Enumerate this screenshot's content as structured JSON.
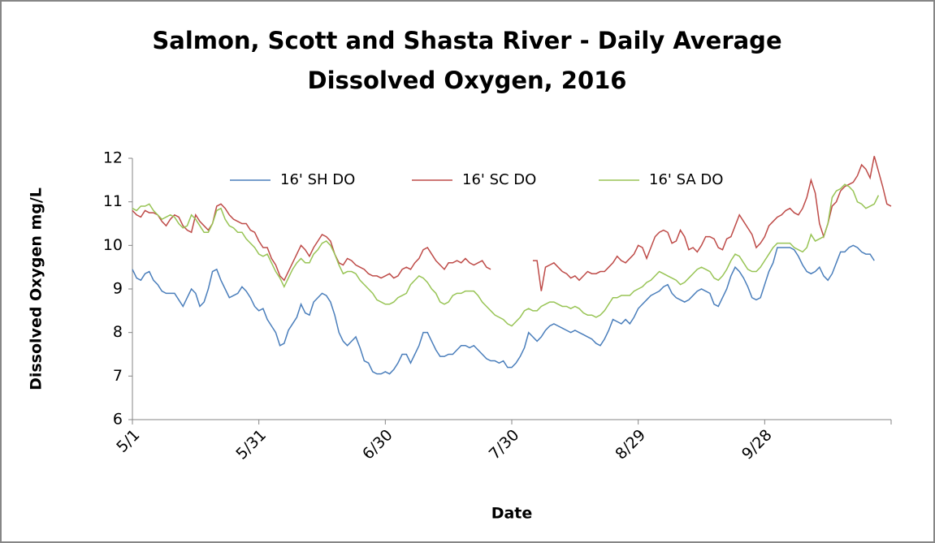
{
  "chart_data": {
    "type": "line",
    "title": [
      "Salmon, Scott and Shasta River - Daily Average",
      "Dissolved Oxygen, 2016"
    ],
    "x_label": "Date",
    "y_label": "Dissolved Oxygen mg/L",
    "legend": "top",
    "x": [
      "5/1",
      "5/2",
      "5/3",
      "5/4",
      "5/5",
      "5/6",
      "5/7",
      "5/8",
      "5/9",
      "5/10",
      "5/11",
      "5/12",
      "5/13",
      "5/14",
      "5/15",
      "5/16",
      "5/17",
      "5/18",
      "5/19",
      "5/20",
      "5/21",
      "5/22",
      "5/23",
      "5/24",
      "5/25",
      "5/26",
      "5/27",
      "5/28",
      "5/29",
      "5/30",
      "5/31",
      "6/1",
      "6/2",
      "6/3",
      "6/4",
      "6/5",
      "6/6",
      "6/7",
      "6/8",
      "6/9",
      "6/10",
      "6/11",
      "6/12",
      "6/13",
      "6/14",
      "6/15",
      "6/16",
      "6/17",
      "6/18",
      "6/19",
      "6/20",
      "6/21",
      "6/22",
      "6/23",
      "6/24",
      "6/25",
      "6/26",
      "6/27",
      "6/28",
      "6/29",
      "6/30",
      "7/1",
      "7/2",
      "7/3",
      "7/4",
      "7/5",
      "7/6",
      "7/7",
      "7/8",
      "7/9",
      "7/10",
      "7/11",
      "7/12",
      "7/13",
      "7/14",
      "7/15",
      "7/16",
      "7/17",
      "7/18",
      "7/19",
      "7/20",
      "7/21",
      "7/22",
      "7/23",
      "7/24",
      "7/25",
      "7/26",
      "7/27",
      "7/28",
      "7/29",
      "7/30",
      "7/31",
      "8/1",
      "8/2",
      "8/3",
      "8/4",
      "8/5",
      "8/6",
      "8/7",
      "8/8",
      "8/9",
      "8/10",
      "8/11",
      "8/12",
      "8/13",
      "8/14",
      "8/15",
      "8/16",
      "8/17",
      "8/18",
      "8/19",
      "8/20",
      "8/21",
      "8/22",
      "8/23",
      "8/24",
      "8/25",
      "8/26",
      "8/27",
      "8/28",
      "8/29",
      "8/30",
      "8/31",
      "9/1",
      "9/2",
      "9/3",
      "9/4",
      "9/5",
      "9/6",
      "9/7",
      "9/8",
      "9/9",
      "9/10",
      "9/11",
      "9/12",
      "9/13",
      "9/14",
      "9/15",
      "9/16",
      "9/17",
      "9/18",
      "9/19",
      "9/20",
      "9/21",
      "9/22",
      "9/23",
      "9/24",
      "9/25",
      "9/26",
      "9/27",
      "9/28",
      "9/29",
      "9/30",
      "10/1",
      "10/2",
      "10/3",
      "10/4",
      "10/5",
      "10/6",
      "10/7",
      "10/8",
      "10/9",
      "10/10",
      "10/11",
      "10/12",
      "10/13",
      "10/14",
      "10/15",
      "10/16",
      "10/17",
      "10/18",
      "10/19",
      "10/20",
      "10/21",
      "10/22",
      "10/23",
      "10/24",
      "10/25",
      "10/26",
      "10/27",
      "10/28"
    ],
    "xticks": [
      "5/1",
      "5/31",
      "6/30",
      "7/30",
      "8/29",
      "9/28"
    ],
    "ylim": [
      6,
      12
    ],
    "yticks": [
      6,
      7,
      8,
      9,
      10,
      11,
      12
    ],
    "series": [
      {
        "name": "16' SH DO",
        "color": "#4a7ebb",
        "values": [
          9.45,
          9.25,
          9.2,
          9.35,
          9.4,
          9.2,
          9.1,
          8.95,
          8.9,
          8.9,
          8.9,
          8.75,
          8.6,
          8.8,
          9.0,
          8.9,
          8.6,
          8.7,
          9.0,
          9.4,
          9.45,
          9.2,
          9.0,
          8.8,
          8.85,
          8.9,
          9.05,
          8.95,
          8.8,
          8.6,
          8.5,
          8.55,
          8.3,
          8.15,
          8.0,
          7.7,
          7.75,
          8.05,
          8.2,
          8.35,
          8.65,
          8.45,
          8.4,
          8.7,
          8.8,
          8.9,
          8.85,
          8.7,
          8.4,
          8.0,
          7.8,
          7.7,
          7.8,
          7.9,
          7.65,
          7.35,
          7.3,
          7.1,
          7.05,
          7.05,
          7.1,
          7.05,
          7.15,
          7.3,
          7.5,
          7.5,
          7.3,
          7.5,
          7.7,
          8.0,
          8.0,
          7.8,
          7.6,
          7.45,
          7.45,
          7.5,
          7.5,
          7.6,
          7.7,
          7.7,
          7.65,
          7.7,
          7.6,
          7.5,
          7.4,
          7.35,
          7.35,
          7.3,
          7.35,
          7.2,
          7.2,
          7.3,
          7.45,
          7.65,
          8.0,
          7.9,
          7.8,
          7.9,
          8.05,
          8.15,
          8.2,
          8.15,
          8.1,
          8.05,
          8.0,
          8.05,
          8.0,
          7.95,
          7.9,
          7.85,
          7.75,
          7.7,
          7.85,
          8.05,
          8.3,
          8.25,
          8.2,
          8.3,
          8.2,
          8.35,
          8.55,
          8.65,
          8.75,
          8.85,
          8.9,
          8.95,
          9.05,
          9.1,
          8.9,
          8.8,
          8.75,
          8.7,
          8.75,
          8.85,
          8.95,
          9.0,
          8.95,
          8.9,
          8.65,
          8.6,
          8.8,
          9.0,
          9.3,
          9.5,
          9.4,
          9.25,
          9.05,
          8.8,
          8.75,
          8.8,
          9.1,
          9.4,
          9.6,
          9.95,
          9.95,
          9.95,
          9.95,
          9.9,
          9.75,
          9.55,
          9.4,
          9.35,
          9.4,
          9.5,
          9.3,
          9.2,
          9.35,
          9.6,
          9.85,
          9.85,
          9.95,
          10.0,
          9.95,
          9.85,
          9.8,
          9.8,
          9.65,
          null,
          null,
          null,
          null
        ]
      },
      {
        "name": "16' SC DO",
        "color": "#be4b48",
        "values": [
          10.8,
          10.7,
          10.65,
          10.8,
          10.75,
          10.75,
          10.7,
          10.55,
          10.45,
          10.6,
          10.7,
          10.65,
          10.45,
          10.35,
          10.3,
          10.7,
          10.55,
          10.45,
          10.35,
          10.5,
          10.9,
          10.95,
          10.85,
          10.7,
          10.6,
          10.55,
          10.5,
          10.5,
          10.35,
          10.3,
          10.1,
          9.95,
          9.95,
          9.7,
          9.55,
          9.3,
          9.2,
          9.4,
          9.6,
          9.8,
          10.0,
          9.9,
          9.75,
          9.95,
          10.1,
          10.25,
          10.2,
          10.1,
          9.8,
          9.6,
          9.55,
          9.7,
          9.65,
          9.55,
          9.5,
          9.45,
          9.35,
          9.3,
          9.3,
          9.25,
          9.3,
          9.35,
          9.25,
          9.3,
          9.45,
          9.5,
          9.45,
          9.6,
          9.7,
          9.9,
          9.95,
          9.8,
          9.65,
          9.55,
          9.45,
          9.6,
          9.6,
          9.65,
          9.6,
          9.7,
          9.6,
          9.55,
          9.6,
          9.65,
          9.5,
          9.45,
          null,
          null,
          null,
          null,
          null,
          null,
          null,
          null,
          null,
          9.65,
          9.65,
          8.95,
          9.5,
          9.55,
          9.6,
          9.5,
          9.4,
          9.35,
          9.25,
          9.3,
          9.2,
          9.3,
          9.4,
          9.35,
          9.35,
          9.4,
          9.4,
          9.5,
          9.6,
          9.75,
          9.65,
          9.6,
          9.7,
          9.8,
          10.0,
          9.95,
          9.7,
          9.95,
          10.2,
          10.3,
          10.35,
          10.3,
          10.05,
          10.1,
          10.35,
          10.2,
          9.9,
          9.95,
          9.85,
          10.0,
          10.2,
          10.2,
          10.15,
          9.95,
          9.9,
          10.15,
          10.2,
          10.45,
          10.7,
          10.55,
          10.4,
          10.25,
          9.95,
          10.05,
          10.2,
          10.45,
          10.55,
          10.65,
          10.7,
          10.8,
          10.85,
          10.75,
          10.7,
          10.85,
          11.1,
          11.5,
          11.2,
          10.5,
          10.2,
          10.5,
          10.9,
          11.0,
          11.25,
          11.35,
          11.4,
          11.45,
          11.6,
          11.85,
          11.75,
          11.55,
          12.05,
          11.7,
          11.35,
          10.95,
          10.9
        ]
      },
      {
        "name": "16' SA DO",
        "color": "#98c455",
        "values": [
          10.85,
          10.8,
          10.9,
          10.9,
          10.95,
          10.8,
          10.7,
          10.6,
          10.65,
          10.7,
          10.65,
          10.5,
          10.4,
          10.45,
          10.7,
          10.6,
          10.45,
          10.3,
          10.3,
          10.5,
          10.8,
          10.85,
          10.6,
          10.45,
          10.4,
          10.3,
          10.3,
          10.15,
          10.05,
          9.95,
          9.8,
          9.75,
          9.8,
          9.6,
          9.4,
          9.25,
          9.05,
          9.25,
          9.45,
          9.6,
          9.7,
          9.6,
          9.6,
          9.8,
          9.9,
          10.05,
          10.1,
          10.0,
          9.8,
          9.55,
          9.35,
          9.4,
          9.4,
          9.35,
          9.2,
          9.1,
          9.0,
          8.9,
          8.75,
          8.7,
          8.65,
          8.65,
          8.7,
          8.8,
          8.85,
          8.9,
          9.1,
          9.2,
          9.3,
          9.25,
          9.15,
          9.0,
          8.9,
          8.7,
          8.65,
          8.7,
          8.85,
          8.9,
          8.9,
          8.95,
          8.95,
          8.95,
          8.85,
          8.7,
          8.6,
          8.5,
          8.4,
          8.35,
          8.3,
          8.2,
          8.15,
          8.25,
          8.35,
          8.5,
          8.55,
          8.5,
          8.5,
          8.6,
          8.65,
          8.7,
          8.7,
          8.65,
          8.6,
          8.6,
          8.55,
          8.6,
          8.55,
          8.45,
          8.4,
          8.4,
          8.35,
          8.4,
          8.5,
          8.65,
          8.8,
          8.8,
          8.85,
          8.85,
          8.85,
          8.95,
          9.0,
          9.05,
          9.15,
          9.2,
          9.3,
          9.4,
          9.35,
          9.3,
          9.25,
          9.2,
          9.1,
          9.15,
          9.25,
          9.35,
          9.45,
          9.5,
          9.45,
          9.4,
          9.25,
          9.2,
          9.3,
          9.45,
          9.65,
          9.8,
          9.75,
          9.6,
          9.45,
          9.4,
          9.4,
          9.5,
          9.65,
          9.8,
          9.95,
          10.05,
          10.05,
          10.05,
          10.05,
          9.95,
          9.9,
          9.85,
          9.95,
          10.25,
          10.1,
          10.15,
          10.2,
          10.5,
          11.1,
          11.25,
          11.3,
          11.4,
          11.35,
          11.25,
          11.0,
          10.95,
          10.85,
          10.9,
          10.95,
          11.15,
          null,
          null,
          null
        ]
      }
    ]
  }
}
